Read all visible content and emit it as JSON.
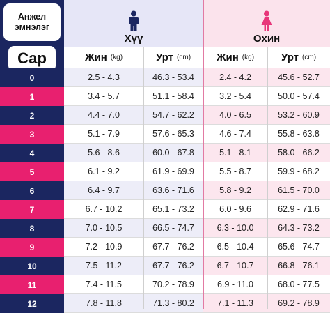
{
  "title": {
    "line1": "Анжел",
    "line2": "эмнэлэг"
  },
  "month_label": "Сар",
  "boy": {
    "label": "Хүү",
    "icon": "boy-icon",
    "color": "#1b2660",
    "bg": "#e6e6f7"
  },
  "girl": {
    "label": "Охин",
    "icon": "girl-icon",
    "color": "#e8367a",
    "bg": "#fbe3ec"
  },
  "columns": {
    "weight": "Жин",
    "weight_unit": "(kg)",
    "height": "Урт",
    "height_unit": "(cm)"
  },
  "colors": {
    "navy": "#1b2660",
    "pink": "#e8206f",
    "boy_row_alt": "#ededf8",
    "girl_row_alt": "#fce6ee"
  },
  "rows": [
    {
      "month": "0",
      "boy_weight": "2.5 - 4.3",
      "boy_height": "46.3 - 53.4",
      "girl_weight": "2.4 - 4.2",
      "girl_height": "45.6 - 52.7"
    },
    {
      "month": "1",
      "boy_weight": "3.4 - 5.7",
      "boy_height": "51.1 - 58.4",
      "girl_weight": "3.2 - 5.4",
      "girl_height": "50.0 - 57.4"
    },
    {
      "month": "2",
      "boy_weight": "4.4 - 7.0",
      "boy_height": "54.7 - 62.2",
      "girl_weight": "4.0 - 6.5",
      "girl_height": "53.2 - 60.9"
    },
    {
      "month": "3",
      "boy_weight": "5.1 - 7.9",
      "boy_height": "57.6 - 65.3",
      "girl_weight": "4.6 - 7.4",
      "girl_height": "55.8 - 63.8"
    },
    {
      "month": "4",
      "boy_weight": "5.6 - 8.6",
      "boy_height": "60.0 - 67.8",
      "girl_weight": "5.1 - 8.1",
      "girl_height": "58.0 - 66.2"
    },
    {
      "month": "5",
      "boy_weight": "6.1 - 9.2",
      "boy_height": "61.9 - 69.9",
      "girl_weight": "5.5 - 8.7",
      "girl_height": "59.9 - 68.2"
    },
    {
      "month": "6",
      "boy_weight": "6.4 - 9.7",
      "boy_height": "63.6 - 71.6",
      "girl_weight": "5.8 - 9.2",
      "girl_height": "61.5 - 70.0"
    },
    {
      "month": "7",
      "boy_weight": "6.7 - 10.2",
      "boy_height": "65.1 - 73.2",
      "girl_weight": "6.0 - 9.6",
      "girl_height": "62.9 - 71.6"
    },
    {
      "month": "8",
      "boy_weight": "7.0 - 10.5",
      "boy_height": "66.5 - 74.7",
      "girl_weight": "6.3 - 10.0",
      "girl_height": "64.3 - 73.2"
    },
    {
      "month": "9",
      "boy_weight": "7.2 - 10.9",
      "boy_height": "67.7 - 76.2",
      "girl_weight": "6.5 - 10.4",
      "girl_height": "65.6 - 74.7"
    },
    {
      "month": "10",
      "boy_weight": "7.5 - 11.2",
      "boy_height": "67.7 - 76.2",
      "girl_weight": "6.7 - 10.7",
      "girl_height": "66.8 - 76.1"
    },
    {
      "month": "11",
      "boy_weight": "7.4 - 11.5",
      "boy_height": "70.2 - 78.9",
      "girl_weight": "6.9 - 11.0",
      "girl_height": "68.0 - 77.5"
    },
    {
      "month": "12",
      "boy_weight": "7.8 - 11.8",
      "boy_height": "71.3 - 80.2",
      "girl_weight": "7.1 - 11.3",
      "girl_height": "69.2 - 78.9"
    }
  ]
}
